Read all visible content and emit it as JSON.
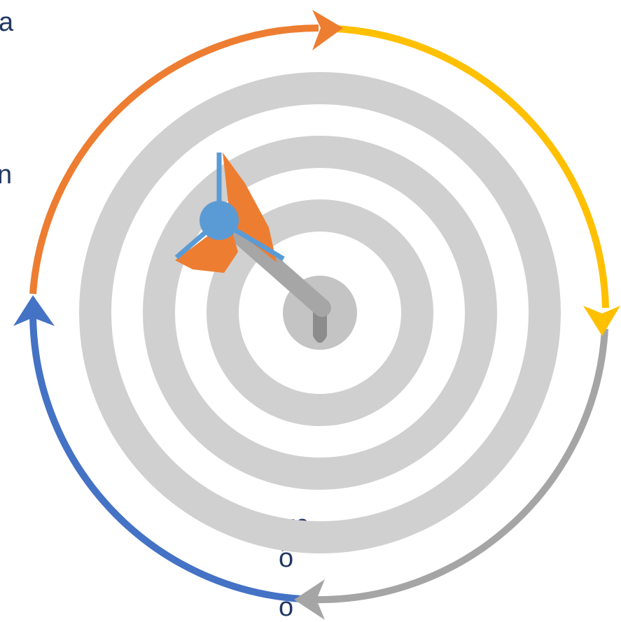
{
  "text_fragments": [
    "a",
    "n",
    "ực",
    "ỗ",
    "ố"
  ]
}
